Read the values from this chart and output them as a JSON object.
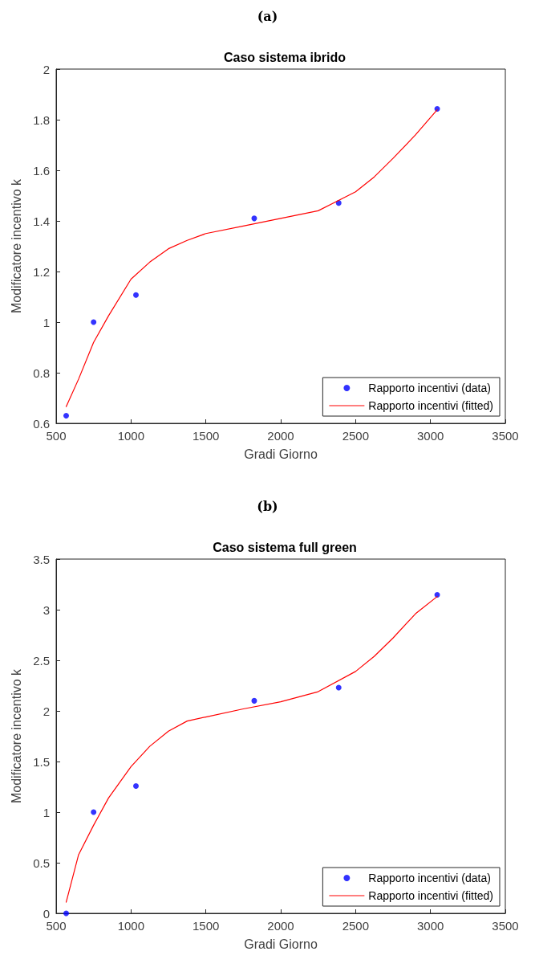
{
  "chart_data": [
    {
      "type": "scatter",
      "title": "Caso sistema ibrido",
      "xlabel": "Gradi Giorno",
      "ylabel": "Modificatore incentivo k",
      "annotations": [
        "(a)"
      ],
      "xlim": [
        500,
        3500
      ],
      "xticks": [
        500,
        1000,
        1500,
        2000,
        2500,
        3000,
        3500
      ],
      "ylim": [
        0.6,
        2
      ],
      "yticks": [
        0.6,
        0.8,
        1,
        1.2,
        1.4,
        1.6,
        1.8,
        2
      ],
      "grid": false,
      "legend": "bottom right",
      "series": [
        {
          "name": "Rapporto incentivi (data)",
          "marker": "circle",
          "color": "#0000ff",
          "x": [
            567,
            750,
            1033,
            1823,
            2387,
            3045
          ],
          "values": [
            0.63,
            1.0,
            1.107,
            1.41,
            1.471,
            1.843
          ]
        },
        {
          "name": "Rapporto incentivi (fitted)",
          "type": "line",
          "marker": "none",
          "line_style": "solid",
          "color": "#ff0000",
          "x": [
            567,
            650,
            750,
            850,
            1000,
            1125,
            1250,
            1375,
            1500,
            1750,
            2000,
            2250,
            2500,
            2625,
            2750,
            2900,
            3045
          ],
          "values": [
            0.666,
            0.775,
            0.92,
            1.025,
            1.17,
            1.237,
            1.29,
            1.323,
            1.35,
            1.38,
            1.41,
            1.44,
            1.515,
            1.574,
            1.647,
            1.74,
            1.839
          ]
        }
      ]
    },
    {
      "type": "scatter",
      "title": "Caso sistema full green",
      "xlabel": "Gradi Giorno",
      "ylabel": "Modificatore incentivo k",
      "annotations": [
        "(b)"
      ],
      "xlim": [
        500,
        3500
      ],
      "xticks": [
        500,
        1000,
        1500,
        2000,
        2500,
        3000,
        3500
      ],
      "ylim": [
        0,
        3.5
      ],
      "yticks": [
        0,
        0.5,
        1,
        1.5,
        2,
        2.5,
        3,
        3.5
      ],
      "grid": false,
      "legend": "bottom right",
      "series": [
        {
          "name": "Rapporto incentivi (data)",
          "marker": "circle",
          "color": "#0000ff",
          "x": [
            567,
            750,
            1033,
            1823,
            2387,
            3045
          ],
          "values": [
            0.0,
            1.0,
            1.258,
            2.1,
            2.23,
            3.147
          ]
        },
        {
          "name": "Rapporto incentivi (fitted)",
          "type": "line",
          "marker": "none",
          "line_style": "solid",
          "color": "#ff0000",
          "x": [
            567,
            650,
            750,
            850,
            1000,
            1125,
            1250,
            1375,
            1500,
            1750,
            2000,
            2250,
            2500,
            2625,
            2750,
            2900,
            3045
          ],
          "values": [
            0.11,
            0.58,
            0.87,
            1.14,
            1.45,
            1.65,
            1.8,
            1.9,
            1.94,
            2.02,
            2.09,
            2.19,
            2.39,
            2.54,
            2.72,
            2.96,
            3.13
          ]
        }
      ]
    }
  ]
}
